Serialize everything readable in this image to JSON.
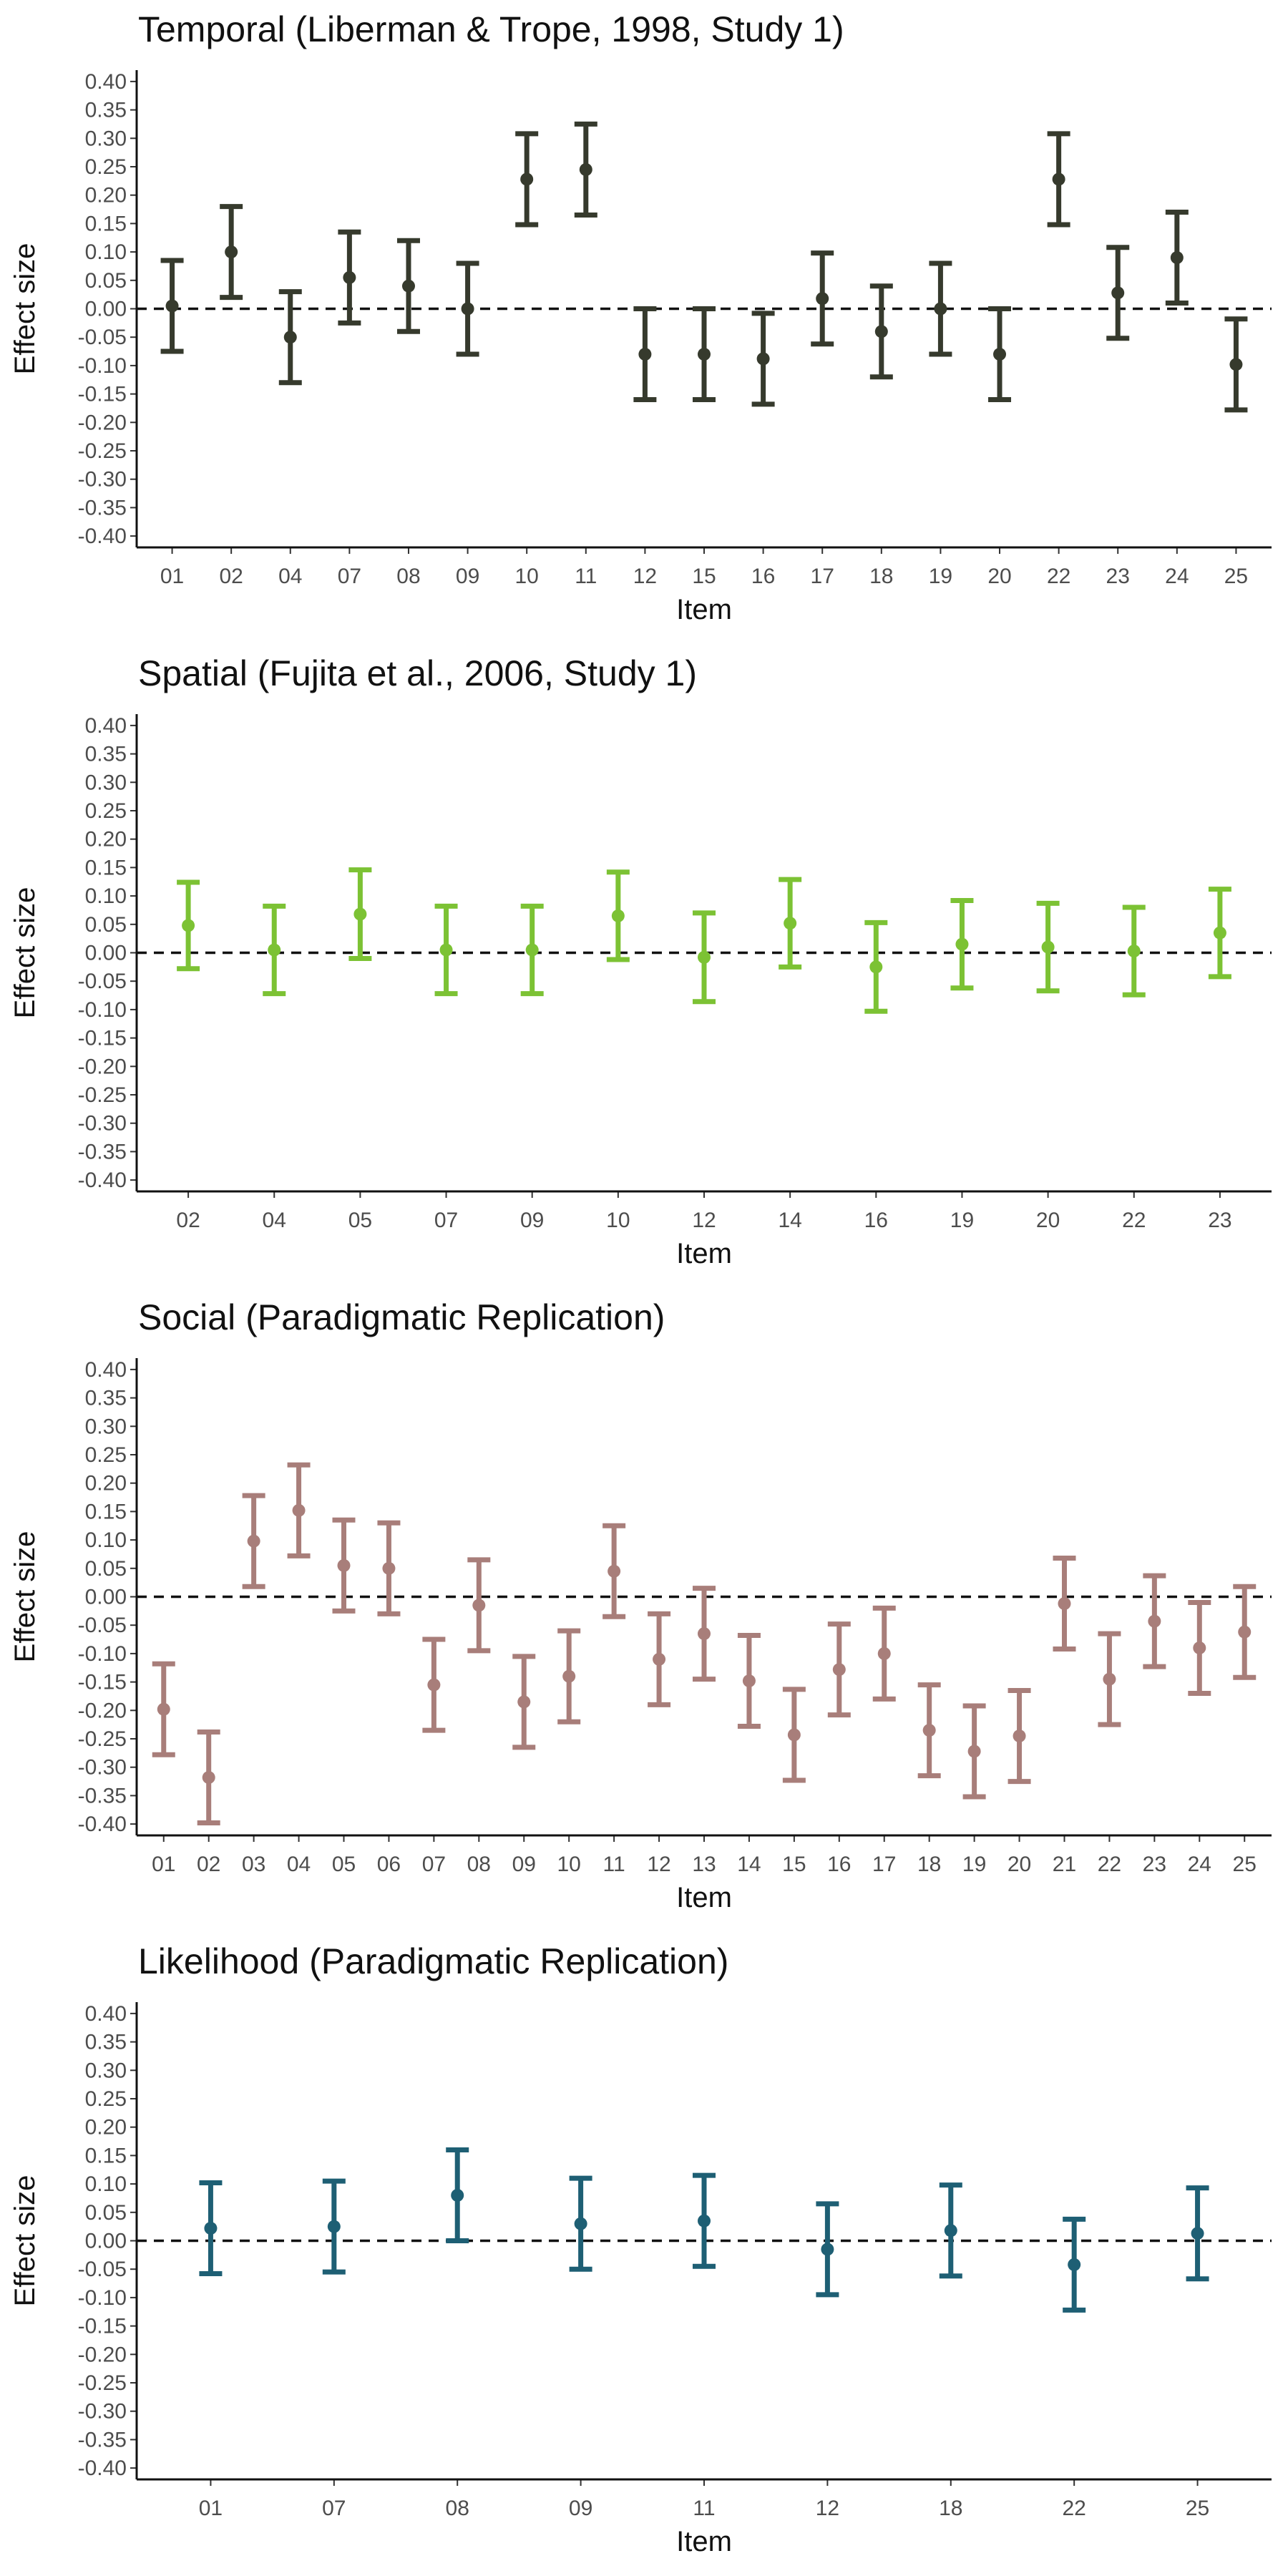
{
  "chart_data": [
    {
      "type": "errorbar",
      "title": "Temporal (Liberman & Trope, 1998, Study 1)",
      "xlabel": "Item",
      "ylabel": "Effect size",
      "ylim": [
        -0.42,
        0.42
      ],
      "yticks": [
        "0.40",
        "0.35",
        "0.30",
        "0.25",
        "0.20",
        "0.15",
        "0.10",
        "0.05",
        "0.00",
        "-0.05",
        "-0.10",
        "-0.15",
        "-0.20",
        "-0.25",
        "-0.30",
        "-0.35",
        "-0.40"
      ],
      "reference_line": 0,
      "color": "#363a2d",
      "categories": [
        "01",
        "02",
        "04",
        "07",
        "08",
        "09",
        "10",
        "11",
        "12",
        "15",
        "16",
        "17",
        "18",
        "19",
        "20",
        "22",
        "23",
        "24",
        "25"
      ],
      "values": [
        0.005,
        0.1,
        -0.05,
        0.055,
        0.04,
        0.0,
        0.228,
        0.245,
        -0.08,
        -0.08,
        -0.088,
        0.018,
        -0.04,
        0.0,
        -0.08,
        0.228,
        0.028,
        0.09,
        -0.098
      ],
      "lower": [
        -0.075,
        0.02,
        -0.13,
        -0.025,
        -0.04,
        -0.08,
        0.148,
        0.165,
        -0.16,
        -0.16,
        -0.168,
        -0.062,
        -0.12,
        -0.08,
        -0.16,
        0.148,
        -0.052,
        0.01,
        -0.178
      ],
      "upper": [
        0.085,
        0.18,
        0.03,
        0.135,
        0.12,
        0.08,
        0.308,
        0.325,
        0.0,
        0.0,
        -0.008,
        0.098,
        0.04,
        0.08,
        0.0,
        0.308,
        0.108,
        0.17,
        -0.018
      ]
    },
    {
      "type": "errorbar",
      "title": "Spatial (Fujita et al., 2006, Study 1)",
      "xlabel": "Item",
      "ylabel": "Effect size",
      "ylim": [
        -0.42,
        0.42
      ],
      "yticks": [
        "0.40",
        "0.35",
        "0.30",
        "0.25",
        "0.20",
        "0.15",
        "0.10",
        "0.05",
        "0.00",
        "-0.05",
        "-0.10",
        "-0.15",
        "-0.20",
        "-0.25",
        "-0.30",
        "-0.35",
        "-0.40"
      ],
      "reference_line": 0,
      "color": "#7cc234",
      "categories": [
        "02",
        "04",
        "05",
        "07",
        "09",
        "10",
        "12",
        "14",
        "16",
        "19",
        "20",
        "22",
        "23"
      ],
      "values": [
        0.048,
        0.005,
        0.068,
        0.005,
        0.005,
        0.065,
        -0.008,
        0.052,
        -0.025,
        0.015,
        0.01,
        0.003,
        0.035
      ],
      "lower": [
        -0.028,
        -0.072,
        -0.01,
        -0.072,
        -0.072,
        -0.012,
        -0.086,
        -0.025,
        -0.103,
        -0.062,
        -0.067,
        -0.074,
        -0.042
      ],
      "upper": [
        0.124,
        0.082,
        0.146,
        0.082,
        0.082,
        0.142,
        0.07,
        0.129,
        0.053,
        0.092,
        0.087,
        0.08,
        0.112
      ]
    },
    {
      "type": "errorbar",
      "title": "Social (Paradigmatic Replication)",
      "xlabel": "Item",
      "ylabel": "Effect size",
      "ylim": [
        -0.42,
        0.42
      ],
      "yticks": [
        "0.40",
        "0.35",
        "0.30",
        "0.25",
        "0.20",
        "0.15",
        "0.10",
        "0.05",
        "0.00",
        "-0.05",
        "-0.10",
        "-0.15",
        "-0.20",
        "-0.25",
        "-0.30",
        "-0.35",
        "-0.40"
      ],
      "reference_line": 0,
      "color": "#a87e7a",
      "categories": [
        "01",
        "02",
        "03",
        "04",
        "05",
        "06",
        "07",
        "08",
        "09",
        "10",
        "11",
        "12",
        "13",
        "14",
        "15",
        "16",
        "17",
        "18",
        "19",
        "20",
        "21",
        "22",
        "23",
        "24",
        "25"
      ],
      "values": [
        -0.198,
        -0.318,
        0.098,
        0.152,
        0.055,
        0.05,
        -0.155,
        -0.015,
        -0.185,
        -0.14,
        0.045,
        -0.11,
        -0.065,
        -0.148,
        -0.243,
        -0.128,
        -0.1,
        -0.235,
        -0.272,
        -0.245,
        -0.012,
        -0.145,
        -0.043,
        -0.09,
        -0.062
      ],
      "lower": [
        -0.278,
        -0.398,
        0.018,
        0.072,
        -0.025,
        -0.03,
        -0.235,
        -0.095,
        -0.265,
        -0.22,
        -0.035,
        -0.19,
        -0.145,
        -0.228,
        -0.323,
        -0.208,
        -0.18,
        -0.315,
        -0.352,
        -0.325,
        -0.092,
        -0.225,
        -0.123,
        -0.17,
        -0.142
      ],
      "upper": [
        -0.118,
        -0.238,
        0.178,
        0.232,
        0.135,
        0.13,
        -0.075,
        0.065,
        -0.105,
        -0.06,
        0.125,
        -0.03,
        0.015,
        -0.068,
        -0.163,
        -0.048,
        -0.02,
        -0.155,
        -0.192,
        -0.165,
        0.068,
        -0.065,
        0.037,
        -0.01,
        0.018
      ]
    },
    {
      "type": "errorbar",
      "title": "Likelihood (Paradigmatic Replication)",
      "xlabel": "Item",
      "ylabel": "Effect size",
      "ylim": [
        -0.42,
        0.42
      ],
      "yticks": [
        "0.40",
        "0.35",
        "0.30",
        "0.25",
        "0.20",
        "0.15",
        "0.10",
        "0.05",
        "0.00",
        "-0.05",
        "-0.10",
        "-0.15",
        "-0.20",
        "-0.25",
        "-0.30",
        "-0.35",
        "-0.40"
      ],
      "reference_line": 0,
      "color": "#1e5f74",
      "categories": [
        "01",
        "07",
        "08",
        "09",
        "11",
        "12",
        "18",
        "22",
        "25"
      ],
      "values": [
        0.022,
        0.025,
        0.08,
        0.03,
        0.035,
        -0.015,
        0.018,
        -0.042,
        0.013
      ],
      "lower": [
        -0.058,
        -0.055,
        0.0,
        -0.05,
        -0.045,
        -0.095,
        -0.062,
        -0.122,
        -0.067
      ],
      "upper": [
        0.102,
        0.105,
        0.16,
        0.11,
        0.115,
        0.065,
        0.098,
        0.038,
        0.093
      ]
    }
  ]
}
